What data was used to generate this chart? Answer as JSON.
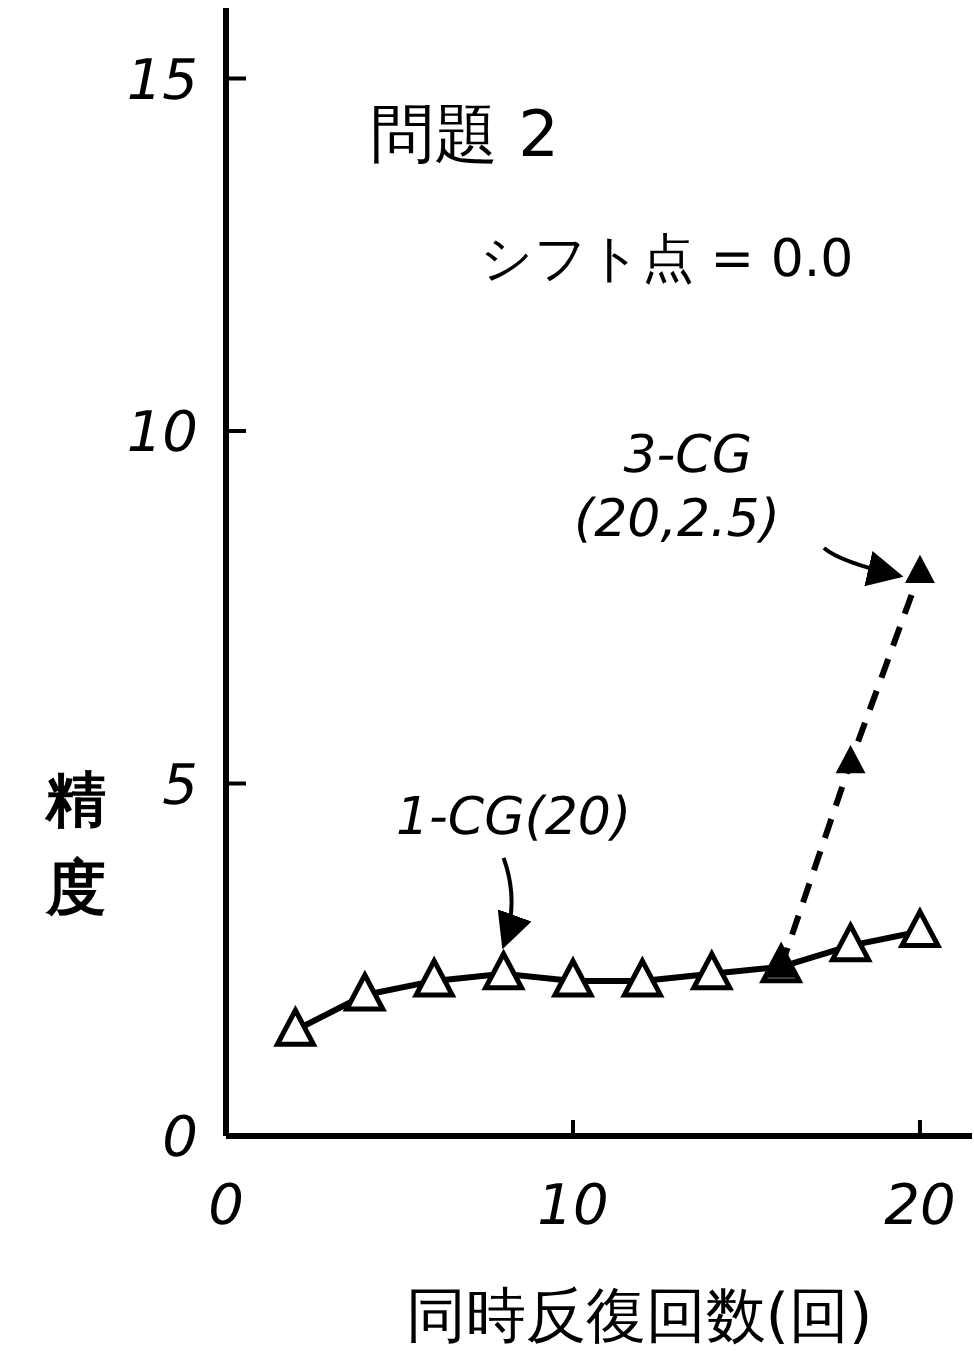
{
  "chart_data": {
    "type": "line",
    "title": "問題 2",
    "xlabel": "同時反復回数(回)",
    "ylabel": "精度",
    "x": [
      2,
      4,
      6,
      8,
      10,
      12,
      14,
      16,
      18,
      20
    ],
    "series": [
      {
        "color": "#000000",
        "values": [
          1.5,
          2.0,
          2.2,
          2.3,
          2.2,
          2.2,
          2.3,
          2.4,
          2.7,
          2.9
        ],
        "marker": "triangle",
        "line_style": "solid"
      },
      {
        "color": "#000000",
        "x": [
          16,
          18,
          20
        ],
        "values": [
          2.4,
          5.3,
          8.0
        ],
        "marker": "triangle",
        "line_style": "dashed"
      }
    ],
    "annotations": [
      "シフト点 = 0.0",
      {
        "text": "1-CG(20)",
        "x": 8,
        "y": 2.3
      },
      {
        "text": "3-CG\n(20,2.5)",
        "x": 20,
        "y": 8.0
      }
    ],
    "xlim": [
      0,
      21.5
    ],
    "ylim": [
      0,
      16
    ],
    "xticks": [
      0,
      10,
      20
    ],
    "yticks": [
      0,
      5,
      10,
      15
    ],
    "grid": false
  }
}
